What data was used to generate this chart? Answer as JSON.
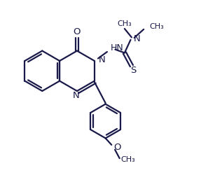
{
  "bg_color": "#ffffff",
  "line_color": "#1a1a4a",
  "line_width": 1.6,
  "font_size": 9.5,
  "figsize": [
    2.87,
    2.6
  ],
  "dpi": 100,
  "xlim": [
    0,
    10
  ],
  "ylim": [
    0,
    9
  ]
}
